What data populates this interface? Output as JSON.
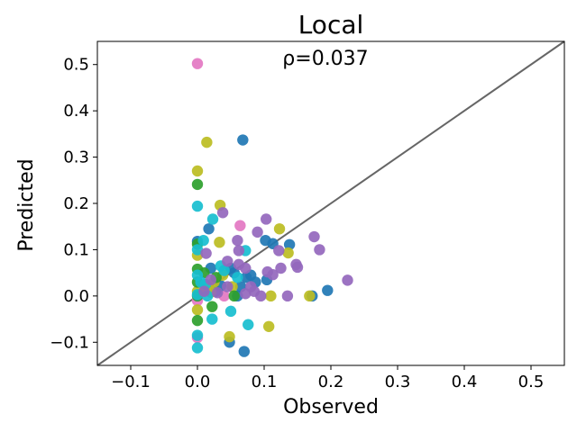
{
  "chart_data": {
    "type": "scatter",
    "title": "Local",
    "annotation": "ρ=0.037",
    "xlabel": "Observed",
    "ylabel": "Predicted",
    "xlim": [
      -0.15,
      0.55
    ],
    "ylim": [
      -0.15,
      0.55
    ],
    "xticks": [
      -0.1,
      0.0,
      0.1,
      0.2,
      0.3,
      0.4,
      0.5
    ],
    "yticks": [
      -0.1,
      0.0,
      0.1,
      0.2,
      0.3,
      0.4,
      0.5
    ],
    "xtick_labels": [
      "−0.1",
      "0.0",
      "0.1",
      "0.2",
      "0.3",
      "0.4",
      "0.5"
    ],
    "ytick_labels": [
      "−0.1",
      "0.0",
      "0.1",
      "0.2",
      "0.3",
      "0.4",
      "0.5"
    ],
    "grid": false,
    "legend": "none",
    "reference_line": {
      "type": "identity",
      "color": "#666666"
    },
    "series": [
      {
        "color": "#e377c2",
        "points": [
          [
            0.0,
            0.502
          ],
          [
            0.064,
            0.152
          ],
          [
            0.0,
            -0.01
          ],
          [
            0.0,
            -0.09
          ],
          [
            0.04,
            0.0
          ]
        ]
      },
      {
        "color": "#1f77b4",
        "points": [
          [
            0.068,
            0.337
          ],
          [
            0.017,
            0.145
          ],
          [
            0.102,
            0.12
          ],
          [
            0.138,
            0.111
          ],
          [
            0.113,
            0.113
          ],
          [
            0.05,
            0.06
          ],
          [
            0.073,
            0.04
          ],
          [
            0.104,
            0.035
          ],
          [
            0.087,
            0.03
          ],
          [
            0.06,
            0.0
          ],
          [
            0.048,
            -0.1
          ],
          [
            0.07,
            -0.12
          ],
          [
            0.195,
            0.012
          ],
          [
            0.172,
            0.0
          ],
          [
            0.02,
            0.06
          ],
          [
            0.0,
            0.118
          ],
          [
            0.027,
            0.01
          ],
          [
            0.08,
            0.045
          ],
          [
            0.055,
            0.05
          ],
          [
            0.035,
            0.022
          ],
          [
            0.065,
            0.02
          ]
        ]
      },
      {
        "color": "#bcbd22",
        "points": [
          [
            0.014,
            0.332
          ],
          [
            0.0,
            0.27
          ],
          [
            0.034,
            0.196
          ],
          [
            0.033,
            0.116
          ],
          [
            0.136,
            0.093
          ],
          [
            0.123,
            0.145
          ],
          [
            0.0,
            0.088
          ],
          [
            0.0,
            -0.03
          ],
          [
            0.107,
            -0.066
          ],
          [
            0.048,
            -0.088
          ],
          [
            0.168,
            0.0
          ],
          [
            0.11,
            0.0
          ],
          [
            0.038,
            0.045
          ],
          [
            0.025,
            0.03
          ],
          [
            0.012,
            0.015
          ],
          [
            0.0,
            0.01
          ],
          [
            0.052,
            0.02
          ],
          [
            0.02,
            0.008
          ]
        ]
      },
      {
        "color": "#2ca02c",
        "points": [
          [
            0.0,
            0.241
          ],
          [
            0.0,
            0.112
          ],
          [
            0.0,
            0.058
          ],
          [
            0.0,
            -0.053
          ],
          [
            0.022,
            -0.023
          ],
          [
            0.055,
            0.0
          ],
          [
            0.01,
            0.05
          ],
          [
            0.0,
            0.03
          ],
          [
            0.028,
            0.04
          ],
          [
            0.0,
            0.0
          ]
        ]
      },
      {
        "color": "#17becf",
        "points": [
          [
            0.0,
            0.194
          ],
          [
            0.023,
            0.166
          ],
          [
            0.009,
            0.12
          ],
          [
            0.072,
            0.098
          ],
          [
            0.0,
            0.1
          ],
          [
            0.0,
            0.003
          ],
          [
            0.0,
            -0.085
          ],
          [
            0.0,
            -0.112
          ],
          [
            0.022,
            -0.05
          ],
          [
            0.05,
            -0.033
          ],
          [
            0.076,
            -0.062
          ],
          [
            0.012,
            0.025
          ],
          [
            0.035,
            0.065
          ],
          [
            0.0,
            0.045
          ],
          [
            0.005,
            0.03
          ],
          [
            0.015,
            0.0
          ],
          [
            0.04,
            0.055
          ],
          [
            0.06,
            0.04
          ]
        ]
      },
      {
        "color": "#9467bd",
        "points": [
          [
            0.038,
            0.18
          ],
          [
            0.103,
            0.166
          ],
          [
            0.09,
            0.138
          ],
          [
            0.175,
            0.128
          ],
          [
            0.06,
            0.12
          ],
          [
            0.013,
            0.092
          ],
          [
            0.062,
            0.098
          ],
          [
            0.122,
            0.098
          ],
          [
            0.183,
            0.1
          ],
          [
            0.148,
            0.068
          ],
          [
            0.15,
            0.062
          ],
          [
            0.125,
            0.06
          ],
          [
            0.072,
            0.06
          ],
          [
            0.062,
            0.068
          ],
          [
            0.105,
            0.052
          ],
          [
            0.113,
            0.046
          ],
          [
            0.225,
            0.034
          ],
          [
            0.135,
            0.0
          ],
          [
            0.095,
            0.0
          ],
          [
            0.085,
            0.01
          ],
          [
            0.072,
            0.005
          ],
          [
            0.03,
            0.007
          ],
          [
            0.045,
            0.075
          ],
          [
            0.02,
            0.035
          ],
          [
            0.045,
            0.02
          ],
          [
            0.08,
            0.02
          ],
          [
            0.01,
            0.01
          ]
        ]
      }
    ]
  }
}
